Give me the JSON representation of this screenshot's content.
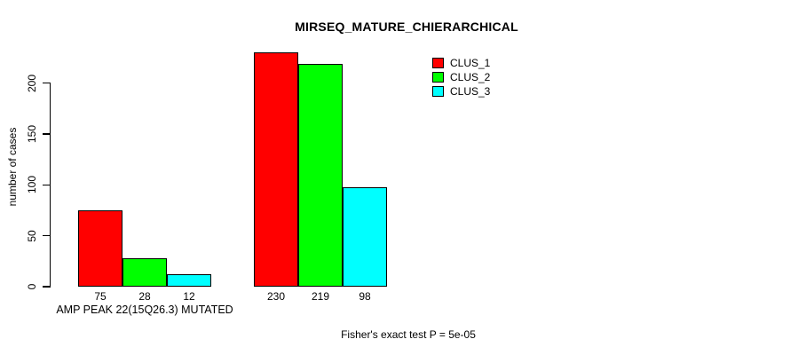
{
  "chart_data": {
    "type": "bar",
    "title": "MIRSEQ_MATURE_CHIERARCHICAL",
    "ylabel": "number of cases",
    "xlabel": "AMP PEAK 22(15Q26.3) MUTATED",
    "caption": "Fisher's exact test P = 5e-05",
    "categories": [
      "AMP PEAK 22(15Q26.3) MUTATED",
      ""
    ],
    "series": [
      {
        "name": "CLUS_1",
        "color": "#ff0000",
        "values": [
          75,
          230
        ]
      },
      {
        "name": "CLUS_2",
        "color": "#00ff00",
        "values": [
          28,
          219
        ]
      },
      {
        "name": "CLUS_3",
        "color": "#00ffff",
        "values": [
          12,
          98
        ]
      }
    ],
    "bar_value_labels": [
      [
        75,
        28,
        12
      ],
      [
        230,
        219,
        98
      ]
    ],
    "yticks": [
      0,
      50,
      100,
      150,
      200
    ],
    "ylim": [
      0,
      232
    ],
    "grid": false,
    "legend_position": "top-right",
    "legend_entries": [
      {
        "label": "CLUS_1",
        "color": "#ff0000"
      },
      {
        "label": "CLUS_2",
        "color": "#00ff00"
      },
      {
        "label": "CLUS_3",
        "color": "#00ffff"
      }
    ]
  }
}
